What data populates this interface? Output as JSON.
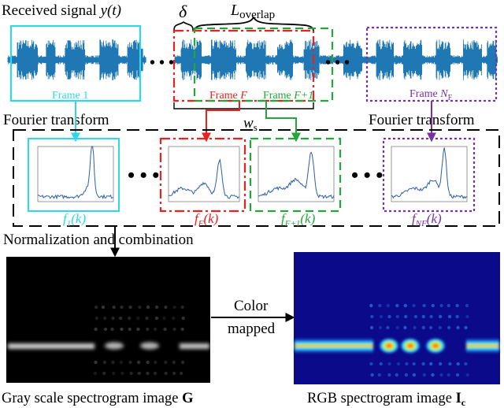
{
  "signal": {
    "label_prefix": "Received signal ",
    "label_var": "y(t)",
    "delta": "δ",
    "overlap_main": "L",
    "overlap_sub": "overlap",
    "window_main": "w",
    "window_sub": "s",
    "ellipsis": "• • •"
  },
  "frames": [
    {
      "label_prefix": "Frame ",
      "label_var": "1",
      "color": "#2fd8e8"
    },
    {
      "label_prefix": "Frame ",
      "label_var": "F",
      "color": "#e8231f"
    },
    {
      "label_prefix": "Frame ",
      "label_var": "F+1",
      "color": "#22a83a"
    },
    {
      "label_prefix": "Frame ",
      "label_var": "N",
      "label_sub": "F",
      "color": "#7b30a8"
    }
  ],
  "fourier": {
    "left_title": "Fourier transform",
    "right_title": "Fourier transform"
  },
  "spectra": [
    {
      "fn": "f",
      "sub": "1",
      "arg": "(k)",
      "color": "#2fd8e8"
    },
    {
      "fn": "f",
      "sub": "F",
      "arg": "(k)",
      "color": "#e8231f"
    },
    {
      "fn": "f",
      "sub": "F+1",
      "arg": "(k)",
      "color": "#22a83a"
    },
    {
      "fn": "f",
      "sub": "NF",
      "arg": "(k)",
      "color": "#7b30a8"
    }
  ],
  "normalization": {
    "title": "Normalization and combination"
  },
  "color_map": {
    "line1": "Color",
    "line2": "mapped"
  },
  "gray": {
    "caption_prefix": "Gray scale spectrogram image ",
    "caption_symbol": "G"
  },
  "rgb": {
    "caption_prefix": "RGB spectrogram image ",
    "caption_symbol": "I",
    "caption_sub": "c"
  },
  "colors": {
    "signal": "#1f77b4",
    "spectrum_line": "#2b5fa8",
    "rgb_background": "#0a0a8a"
  }
}
